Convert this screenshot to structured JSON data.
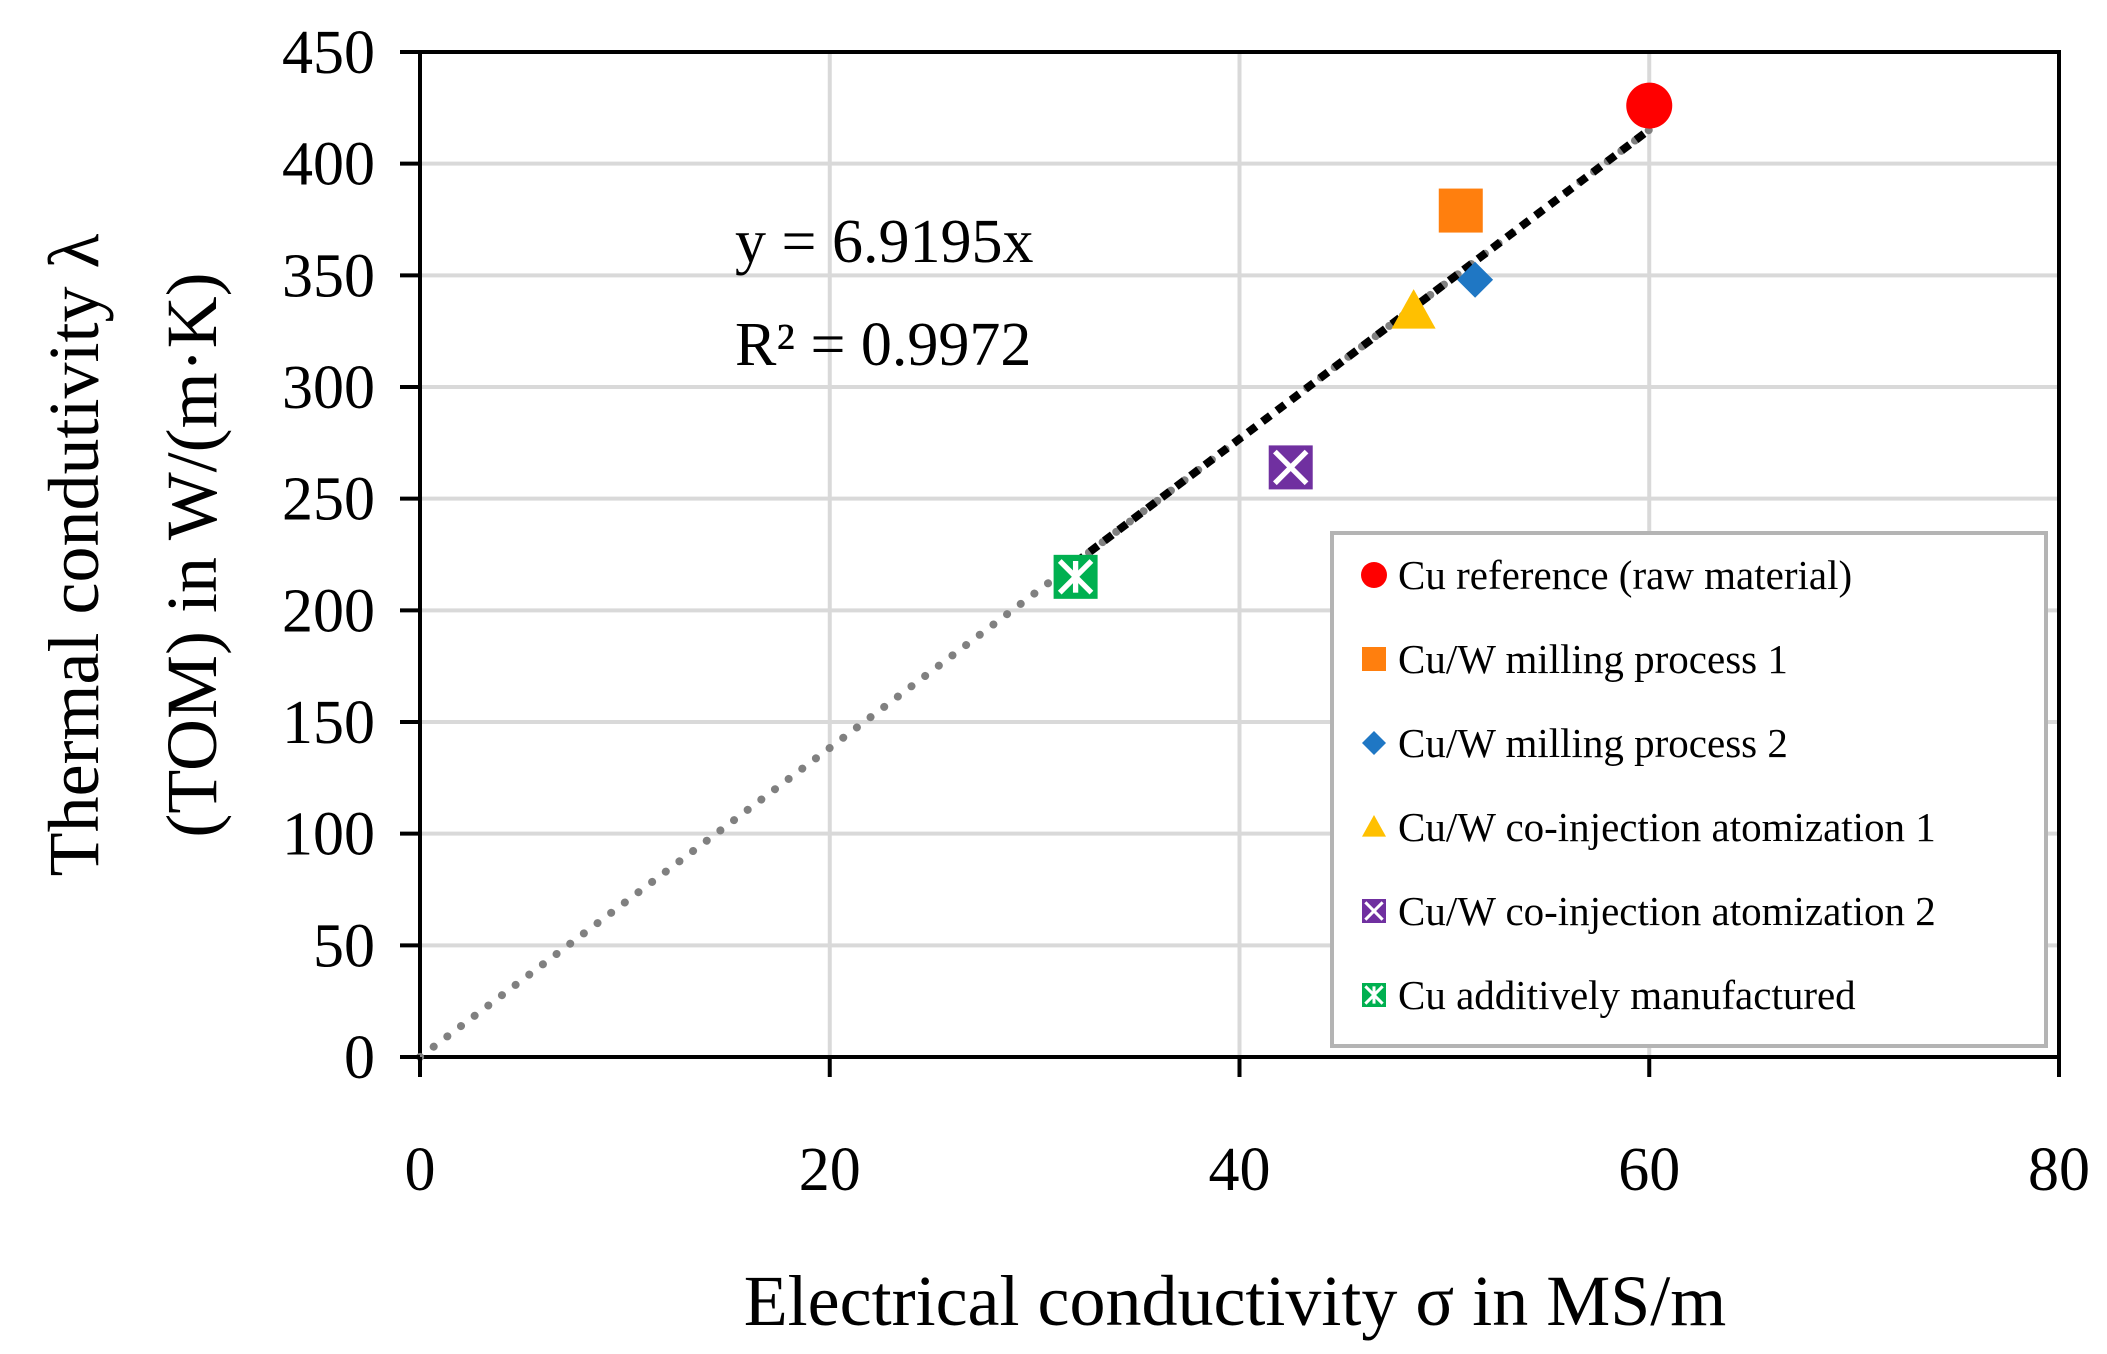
{
  "chart_data": {
    "type": "scatter",
    "xlabel": "Electrical conductivity σ in MS/m",
    "ylabel_line1": "Thermal condutivity λ",
    "ylabel_line2": "(TOM) in W/(m·K)",
    "xlim": [
      0,
      80
    ],
    "ylim": [
      0,
      450
    ],
    "x_ticks": [
      0,
      20,
      40,
      60,
      80
    ],
    "y_ticks": [
      0,
      50,
      100,
      150,
      200,
      250,
      300,
      350,
      400,
      450
    ],
    "grid": true,
    "legend_position": "bottom-right",
    "series": [
      {
        "name": "Cu reference (raw material)",
        "marker": "circle",
        "color": "#ff0000",
        "x": 60.0,
        "y": 426
      },
      {
        "name": "Cu/W milling process 1",
        "marker": "square",
        "color": "#ff7f0e",
        "x": 50.8,
        "y": 379
      },
      {
        "name": "Cu/W milling process 2",
        "marker": "diamond",
        "color": "#1f77c4",
        "x": 51.5,
        "y": 348
      },
      {
        "name": "Cu/W co-injection atomization 1",
        "marker": "triangle",
        "color": "#ffc000",
        "x": 48.5,
        "y": 334
      },
      {
        "name": "Cu/W co-injection atomization 2",
        "marker": "x-square",
        "color": "#7030a0",
        "x": 42.5,
        "y": 264
      },
      {
        "name": "Cu additively manufactured",
        "marker": "star-square",
        "color": "#00b050",
        "x": 32.0,
        "y": 215
      }
    ],
    "trendline": {
      "slope": 6.9195,
      "x_range": [
        0,
        60
      ],
      "fit_x_range": [
        32,
        60
      ],
      "equation": "y = 6.9195x",
      "r_squared": "R² = 0.9972"
    }
  }
}
